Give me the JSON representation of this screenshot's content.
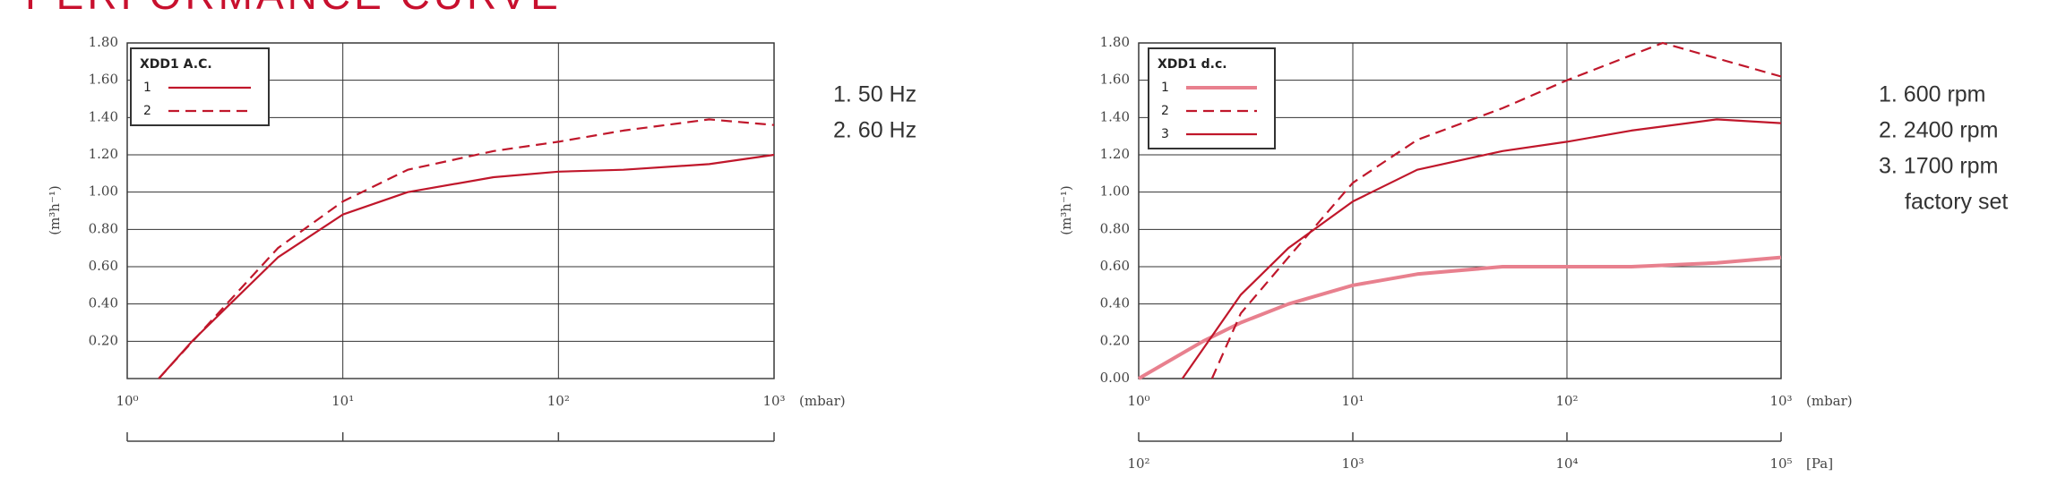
{
  "title": "PERFORMANCE CURVE",
  "chart_data": [
    {
      "type": "line",
      "log_x": true,
      "grid": true,
      "ylabel": "(m³h⁻¹)",
      "xlabel": "(mbar)",
      "legend_title": "XDD1 A.C.",
      "legend": "upper left",
      "xlim": [
        1,
        1000
      ],
      "xticks": [
        {
          "value": 1,
          "label": "10⁰"
        },
        {
          "value": 10,
          "label": "10¹"
        },
        {
          "value": 100,
          "label": "10²"
        },
        {
          "value": 1000,
          "label": "10³"
        }
      ],
      "ylim": [
        0,
        1.8
      ],
      "yticks": [
        {
          "value": 0.2,
          "label": "0.20"
        },
        {
          "value": 0.4,
          "label": "0.40"
        },
        {
          "value": 0.6,
          "label": "0.60"
        },
        {
          "value": 0.8,
          "label": "0.80"
        },
        {
          "value": 1,
          "label": "1.00"
        },
        {
          "value": 1.2,
          "label": "1.20"
        },
        {
          "value": 1.4,
          "label": "1.40"
        },
        {
          "value": 1.6,
          "label": "1.60"
        },
        {
          "value": 1.8,
          "label": "1.80"
        }
      ],
      "series": [
        {
          "name": "1",
          "color": "#c0172b",
          "style": "solid",
          "x": [
            1.4,
            2,
            3,
            5,
            10,
            20,
            50,
            100,
            200,
            500,
            1000
          ],
          "values": [
            0,
            0.2,
            0.4,
            0.65,
            0.88,
            1.0,
            1.08,
            1.11,
            1.12,
            1.15,
            1.2
          ]
        },
        {
          "name": "2",
          "color": "#c0172b",
          "style": "dashed",
          "x": [
            1.4,
            3,
            5,
            10,
            20,
            50,
            100,
            200,
            500,
            1000
          ],
          "values": [
            0,
            0.42,
            0.7,
            0.95,
            1.12,
            1.22,
            1.27,
            1.33,
            1.39,
            1.36
          ]
        }
      ],
      "annotations": [
        "1. 50 Hz",
        "2. 60 Hz"
      ]
    },
    {
      "type": "line",
      "log_x": true,
      "grid": true,
      "ylabel": "(m³h⁻¹)",
      "xlabel": "(mbar)",
      "x2label": "[Pa]",
      "legend_title": "XDD1 d.c.",
      "legend": "upper left",
      "xlim": [
        1,
        1000
      ],
      "xticks": [
        {
          "value": 1,
          "label": "10⁰"
        },
        {
          "value": 10,
          "label": "10¹"
        },
        {
          "value": 100,
          "label": "10²"
        },
        {
          "value": 1000,
          "label": "10³"
        }
      ],
      "x2lim": [
        100,
        100000
      ],
      "x2ticks": [
        {
          "value": 100,
          "label": "10²"
        },
        {
          "value": 1000,
          "label": "10³"
        },
        {
          "value": 10000,
          "label": "10⁴"
        },
        {
          "value": 100000,
          "label": "10⁵"
        }
      ],
      "ylim": [
        0,
        1.8
      ],
      "yticks": [
        {
          "value": 0,
          "label": "0.00"
        },
        {
          "value": 0.2,
          "label": "0.20"
        },
        {
          "value": 0.4,
          "label": "0.40"
        },
        {
          "value": 0.6,
          "label": "0.60"
        },
        {
          "value": 0.8,
          "label": "0.80"
        },
        {
          "value": 1,
          "label": "1.00"
        },
        {
          "value": 1.2,
          "label": "1.20"
        },
        {
          "value": 1.4,
          "label": "1.40"
        },
        {
          "value": 1.6,
          "label": "1.60"
        },
        {
          "value": 1.8,
          "label": "1.80"
        }
      ],
      "series": [
        {
          "name": "1",
          "color": "#e8808e",
          "style": "thick",
          "x": [
            1,
            2,
            3,
            5,
            10,
            20,
            50,
            100,
            200,
            500,
            1000
          ],
          "values": [
            0,
            0.2,
            0.3,
            0.4,
            0.5,
            0.56,
            0.6,
            0.6,
            0.6,
            0.62,
            0.65
          ]
        },
        {
          "name": "2",
          "color": "#c0172b",
          "style": "dashed",
          "x": [
            2.2,
            3,
            5,
            10,
            20,
            50,
            100,
            280,
            1000
          ],
          "values": [
            0,
            0.35,
            0.65,
            1.05,
            1.28,
            1.45,
            1.6,
            1.8,
            1.62
          ]
        },
        {
          "name": "3",
          "color": "#c0172b",
          "style": "solid",
          "x": [
            1.6,
            3,
            5,
            10,
            20,
            50,
            100,
            200,
            500,
            1000
          ],
          "values": [
            0,
            0.45,
            0.7,
            0.95,
            1.12,
            1.22,
            1.27,
            1.33,
            1.39,
            1.37
          ]
        }
      ],
      "annotations": [
        "1. 600 rpm",
        "2. 2400 rpm",
        "3. 1700 rpm",
        "factory set"
      ]
    }
  ]
}
